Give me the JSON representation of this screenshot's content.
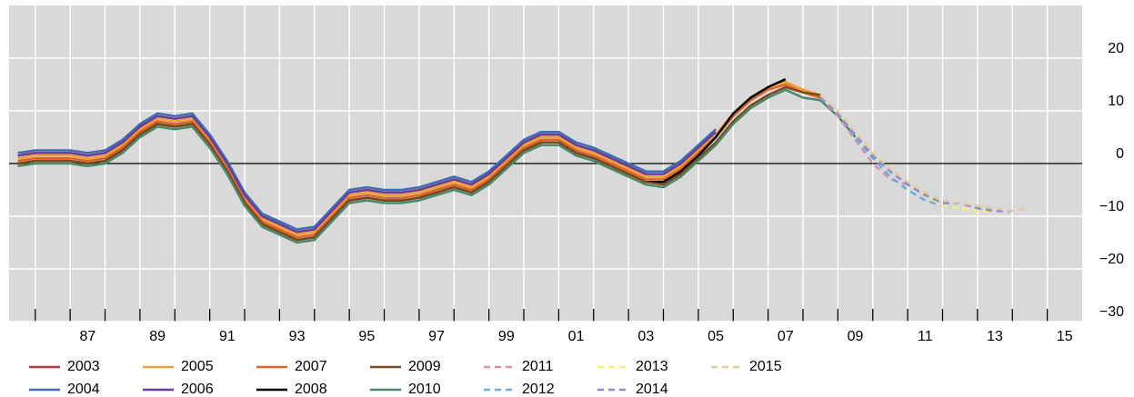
{
  "chart_data": {
    "type": "line",
    "x": [
      1985.5,
      1986,
      1986.5,
      1987,
      1987.5,
      1988,
      1988.5,
      1989,
      1989.5,
      1990,
      1990.5,
      1991,
      1991.5,
      1992,
      1992.5,
      1993,
      1993.5,
      1994,
      1994.5,
      1995,
      1995.5,
      1996,
      1996.5,
      1997,
      1997.5,
      1998,
      1998.5,
      1999,
      1999.5,
      2000,
      2000.5,
      2001,
      2001.5,
      2002,
      2002.5,
      2003,
      2003.5,
      2004,
      2004.5,
      2005,
      2005.5,
      2006,
      2006.5,
      2007,
      2007.5,
      2008,
      2008.5,
      2009,
      2009.5,
      2010,
      2010.5,
      2011,
      2011.5,
      2012,
      2012.5,
      2013,
      2013.5,
      2014,
      2014.5
    ],
    "xlim": [
      1985.25,
      2016
    ],
    "xticks": [
      {
        "value": 1987.5,
        "label": "87"
      },
      {
        "value": 1989.5,
        "label": "89"
      },
      {
        "value": 1991.5,
        "label": "91"
      },
      {
        "value": 1993.5,
        "label": "93"
      },
      {
        "value": 1995.5,
        "label": "95"
      },
      {
        "value": 1997.5,
        "label": "97"
      },
      {
        "value": 1999.5,
        "label": "99"
      },
      {
        "value": 2001.5,
        "label": "01"
      },
      {
        "value": 2003.5,
        "label": "03"
      },
      {
        "value": 2005.5,
        "label": "05"
      },
      {
        "value": 2007.5,
        "label": "07"
      },
      {
        "value": 2009.5,
        "label": "09"
      },
      {
        "value": 2011.5,
        "label": "11"
      },
      {
        "value": 2013.5,
        "label": "13"
      },
      {
        "value": 2015.5,
        "label": "15"
      }
    ],
    "xgrid": [
      1986,
      1987,
      1988,
      1989,
      1990,
      1991,
      1992,
      1993,
      1994,
      1995,
      1996,
      1997,
      1998,
      1999,
      2000,
      2001,
      2002,
      2003,
      2004,
      2005,
      2006,
      2007,
      2008,
      2009,
      2010,
      2011,
      2012,
      2013,
      2014,
      2015
    ],
    "ylim": [
      -30,
      30
    ],
    "yticks": [
      {
        "value": -30,
        "label": "−30"
      },
      {
        "value": -20,
        "label": "−20"
      },
      {
        "value": -10,
        "label": "−10"
      },
      0,
      10,
      20
    ],
    "grid": true,
    "series": [
      {
        "name": "2003",
        "color": "#b5383f",
        "values": [
          1.5,
          2,
          2,
          2,
          1.5,
          2,
          4,
          7,
          9,
          8.5,
          9,
          5,
          0,
          -6,
          -10,
          -11.5,
          -13,
          -12.5,
          -9,
          -5.5,
          -5,
          -5.5,
          -5.5,
          -5,
          -4,
          -3,
          -4,
          -2,
          1,
          4,
          5.5,
          5.5,
          3.5,
          2.5,
          1,
          -0.5,
          -2,
          null,
          null,
          null,
          null,
          null,
          null,
          null,
          null,
          null,
          null,
          null,
          null,
          null,
          null,
          null,
          null,
          null,
          null,
          null,
          null,
          null,
          null
        ]
      },
      {
        "name": "2004",
        "color": "#3b6fb6",
        "values": [
          2,
          2.5,
          2.5,
          2.5,
          2,
          2.5,
          4.5,
          7.5,
          9.5,
          9,
          9.5,
          5.5,
          0.5,
          -5.5,
          -9.5,
          -11,
          -12.5,
          -12,
          -8.5,
          -5,
          -4.5,
          -5,
          -5,
          -4.5,
          -3.5,
          -2.5,
          -3.5,
          -1.5,
          1.5,
          4.5,
          6,
          6,
          4,
          3,
          1.5,
          0,
          -1.5,
          -1.5,
          0.5,
          3.5,
          6.5,
          null,
          null,
          null,
          null,
          null,
          null,
          null,
          null,
          null,
          null,
          null,
          null,
          null,
          null,
          null,
          null,
          null,
          null
        ]
      },
      {
        "name": "2005",
        "color": "#f0a030",
        "values": [
          1,
          1.5,
          1.5,
          1.5,
          1,
          1.5,
          3.5,
          6.5,
          8.5,
          8,
          8.5,
          4.5,
          -0.5,
          -6.5,
          -10.5,
          -12,
          -13.5,
          -13,
          -9.5,
          -6,
          -5.5,
          -6,
          -6,
          -5.5,
          -4.5,
          -3.5,
          -4.5,
          -2.5,
          0.5,
          3.5,
          5,
          5,
          3,
          2,
          0.5,
          -1,
          -2.5,
          -2.5,
          -0.5,
          2.5,
          5.5,
          9.5,
          12.5,
          14.5,
          15.5,
          14,
          13,
          null,
          null,
          null,
          null,
          null,
          null,
          null,
          null,
          null,
          null,
          null,
          null
        ]
      },
      {
        "name": "2006",
        "color": "#6a3d9a",
        "values": [
          1.5,
          2,
          2,
          2,
          1.5,
          2,
          4,
          7,
          9,
          8.5,
          9,
          5,
          0,
          -6,
          -10,
          -11.5,
          -13,
          -12.5,
          -9,
          -5.5,
          -5,
          -5.5,
          -5.5,
          -5,
          -4,
          -3,
          -4,
          -2,
          1,
          4,
          5.5,
          5.5,
          3.5,
          2.5,
          1,
          -0.5,
          -2,
          -2,
          0,
          3,
          6,
          null,
          null,
          null,
          null,
          null,
          null,
          null,
          null,
          null,
          null,
          null,
          null,
          null,
          null,
          null,
          null,
          null,
          null
        ]
      },
      {
        "name": "2007",
        "color": "#e0642a",
        "values": [
          0.5,
          1,
          1,
          1,
          0.5,
          1,
          3,
          6,
          8,
          7.5,
          8,
          4,
          -1,
          -7,
          -11,
          -12.5,
          -14,
          -13.5,
          -10,
          -6.5,
          -6,
          -6.5,
          -6.5,
          -6,
          -5,
          -4,
          -5,
          -3,
          0,
          3,
          4.5,
          4.5,
          2.5,
          1.5,
          0,
          -1.5,
          -3,
          -3,
          -1,
          2,
          5,
          9,
          12,
          14,
          15,
          13.5,
          12.5,
          null,
          null,
          null,
          null,
          null,
          null,
          null,
          null,
          null,
          null,
          null,
          null
        ]
      },
      {
        "name": "2008",
        "color": "#000000",
        "values": [
          0,
          0.5,
          0.5,
          0.5,
          0,
          0.5,
          2.5,
          5.5,
          7.5,
          7,
          7.5,
          3.5,
          -1.5,
          -7.5,
          -11.5,
          -13,
          -14.5,
          -14,
          -10.5,
          -7,
          -6.5,
          -7,
          -7,
          -6.5,
          -5.5,
          -4.5,
          -5.5,
          -3.5,
          -0.5,
          2.5,
          4,
          4,
          2,
          1,
          -0.5,
          -2,
          -3.5,
          -3.5,
          -1.5,
          1.5,
          5,
          9.5,
          12.5,
          14.5,
          16,
          null,
          null,
          null,
          null,
          null,
          null,
          null,
          null,
          null,
          null,
          null,
          null,
          null,
          null
        ]
      },
      {
        "name": "2009",
        "color": "#7a4a1e",
        "values": [
          0,
          0.5,
          0.5,
          0.5,
          0,
          0.5,
          2.5,
          5.5,
          7.5,
          7,
          7.5,
          3.5,
          -1.5,
          -7.5,
          -11.5,
          -13,
          -14.5,
          -14,
          -10.5,
          -7,
          -6.5,
          -7,
          -7,
          -6.5,
          -5.5,
          -4.5,
          -5.5,
          -3.5,
          -0.5,
          2.5,
          4,
          4,
          2,
          1,
          -0.5,
          -2,
          -3.5,
          -4,
          -2,
          1,
          4,
          8,
          11,
          13,
          14.5,
          13.5,
          13,
          null,
          null,
          null,
          null,
          null,
          null,
          null,
          null,
          null,
          null,
          null,
          null
        ]
      },
      {
        "name": "2010",
        "color": "#4a8a6a",
        "values": [
          -0.5,
          0,
          0,
          0,
          -0.5,
          0,
          2,
          5,
          7,
          6.5,
          7,
          3,
          -2,
          -8,
          -12,
          -13.5,
          -15,
          -14.5,
          -11,
          -7.5,
          -7,
          -7.5,
          -7.5,
          -7,
          -6,
          -5,
          -6,
          -4,
          -1,
          2,
          3.5,
          3.5,
          1.5,
          0.5,
          -1,
          -2.5,
          -4,
          -4.5,
          -2.5,
          0.5,
          3.5,
          7.5,
          10.5,
          12.5,
          14,
          12.5,
          12,
          9,
          5,
          null,
          null,
          null,
          null,
          null,
          null,
          null,
          null,
          null,
          null
        ]
      },
      {
        "name": "2011",
        "color": "#d98fb0",
        "dashed": true,
        "values": [
          null,
          null,
          null,
          null,
          null,
          null,
          null,
          null,
          null,
          null,
          null,
          null,
          null,
          null,
          null,
          null,
          null,
          null,
          null,
          null,
          null,
          null,
          null,
          null,
          null,
          null,
          null,
          null,
          null,
          null,
          null,
          null,
          null,
          null,
          null,
          null,
          null,
          null,
          null,
          null,
          null,
          null,
          null,
          null,
          null,
          null,
          12.5,
          9,
          4.5,
          0,
          -3,
          -4,
          null,
          null,
          null,
          null,
          null,
          null,
          null
        ]
      },
      {
        "name": "2012",
        "color": "#6aaee0",
        "dashed": true,
        "values": [
          null,
          null,
          null,
          null,
          null,
          null,
          null,
          null,
          null,
          null,
          null,
          null,
          null,
          null,
          null,
          null,
          null,
          null,
          null,
          null,
          null,
          null,
          null,
          null,
          null,
          null,
          null,
          null,
          null,
          null,
          null,
          null,
          null,
          null,
          null,
          null,
          null,
          null,
          null,
          null,
          null,
          null,
          null,
          null,
          null,
          null,
          12.5,
          9.5,
          5,
          1,
          -2.5,
          -5,
          -7,
          -8,
          -8.5,
          null,
          null,
          null,
          null
        ]
      },
      {
        "name": "2013",
        "color": "#f5f07a",
        "dashed": true,
        "values": [
          null,
          null,
          null,
          null,
          null,
          null,
          null,
          null,
          null,
          null,
          null,
          null,
          null,
          null,
          null,
          null,
          null,
          null,
          null,
          null,
          null,
          null,
          null,
          null,
          null,
          null,
          null,
          null,
          null,
          null,
          null,
          null,
          null,
          null,
          null,
          null,
          null,
          null,
          null,
          null,
          null,
          null,
          null,
          null,
          null,
          null,
          13,
          10,
          6,
          2,
          -1,
          -3.5,
          -6,
          -8,
          -8.5,
          -9,
          -9,
          null,
          null
        ]
      },
      {
        "name": "2014",
        "color": "#8a8ad0",
        "dashed": true,
        "values": [
          null,
          null,
          null,
          null,
          null,
          null,
          null,
          null,
          null,
          null,
          null,
          null,
          null,
          null,
          null,
          null,
          null,
          null,
          null,
          null,
          null,
          null,
          null,
          null,
          null,
          null,
          null,
          null,
          null,
          null,
          null,
          null,
          null,
          null,
          null,
          null,
          null,
          null,
          null,
          null,
          null,
          null,
          null,
          null,
          null,
          null,
          12.5,
          9.5,
          5.5,
          1.5,
          -1.5,
          -4,
          -6,
          -7.5,
          -7.5,
          -8.5,
          -9,
          -9,
          null
        ]
      },
      {
        "name": "2015",
        "color": "#e6c8a0",
        "dashed": true,
        "values": [
          null,
          null,
          null,
          null,
          null,
          null,
          null,
          null,
          null,
          null,
          null,
          null,
          null,
          null,
          null,
          null,
          null,
          null,
          null,
          null,
          null,
          null,
          null,
          null,
          null,
          null,
          null,
          null,
          null,
          null,
          null,
          null,
          null,
          null,
          null,
          null,
          null,
          null,
          null,
          null,
          null,
          null,
          null,
          null,
          null,
          null,
          13,
          10,
          6,
          2,
          -1,
          -3.5,
          -5.5,
          -7,
          -7.5,
          -8,
          -8.5,
          -9,
          -8.5
        ]
      }
    ]
  }
}
